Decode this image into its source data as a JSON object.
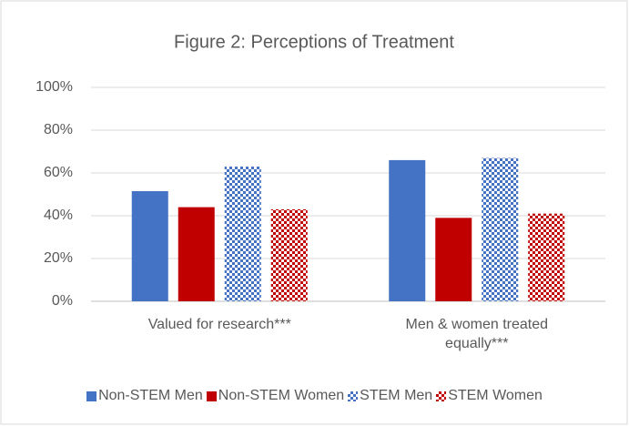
{
  "chart_data": {
    "type": "bar",
    "title": "Figure 2: Perceptions of Treatment",
    "categories": [
      "Valued for research***",
      "Men & women treated equally***"
    ],
    "series": [
      {
        "name": "Non-STEM Men",
        "color": "#4472c4",
        "pattern": "solid",
        "values": [
          51.5,
          66
        ]
      },
      {
        "name": "Non-STEM Women",
        "color": "#c00000",
        "pattern": "solid",
        "values": [
          44,
          39
        ]
      },
      {
        "name": "STEM Men",
        "color": "#4472c4",
        "pattern": "checkerboard",
        "values": [
          63,
          67
        ]
      },
      {
        "name": "STEM Women",
        "color": "#c00000",
        "pattern": "checkerboard",
        "values": [
          43,
          41
        ]
      }
    ],
    "ylim": [
      0,
      100
    ],
    "yticks": [
      {
        "value": 0,
        "label": "0%"
      },
      {
        "value": 20,
        "label": "20%"
      },
      {
        "value": 40,
        "label": "40%"
      },
      {
        "value": 60,
        "label": "60%"
      },
      {
        "value": 80,
        "label": "80%"
      },
      {
        "value": 100,
        "label": "100%"
      }
    ],
    "grid": true,
    "legend": "bottom"
  }
}
